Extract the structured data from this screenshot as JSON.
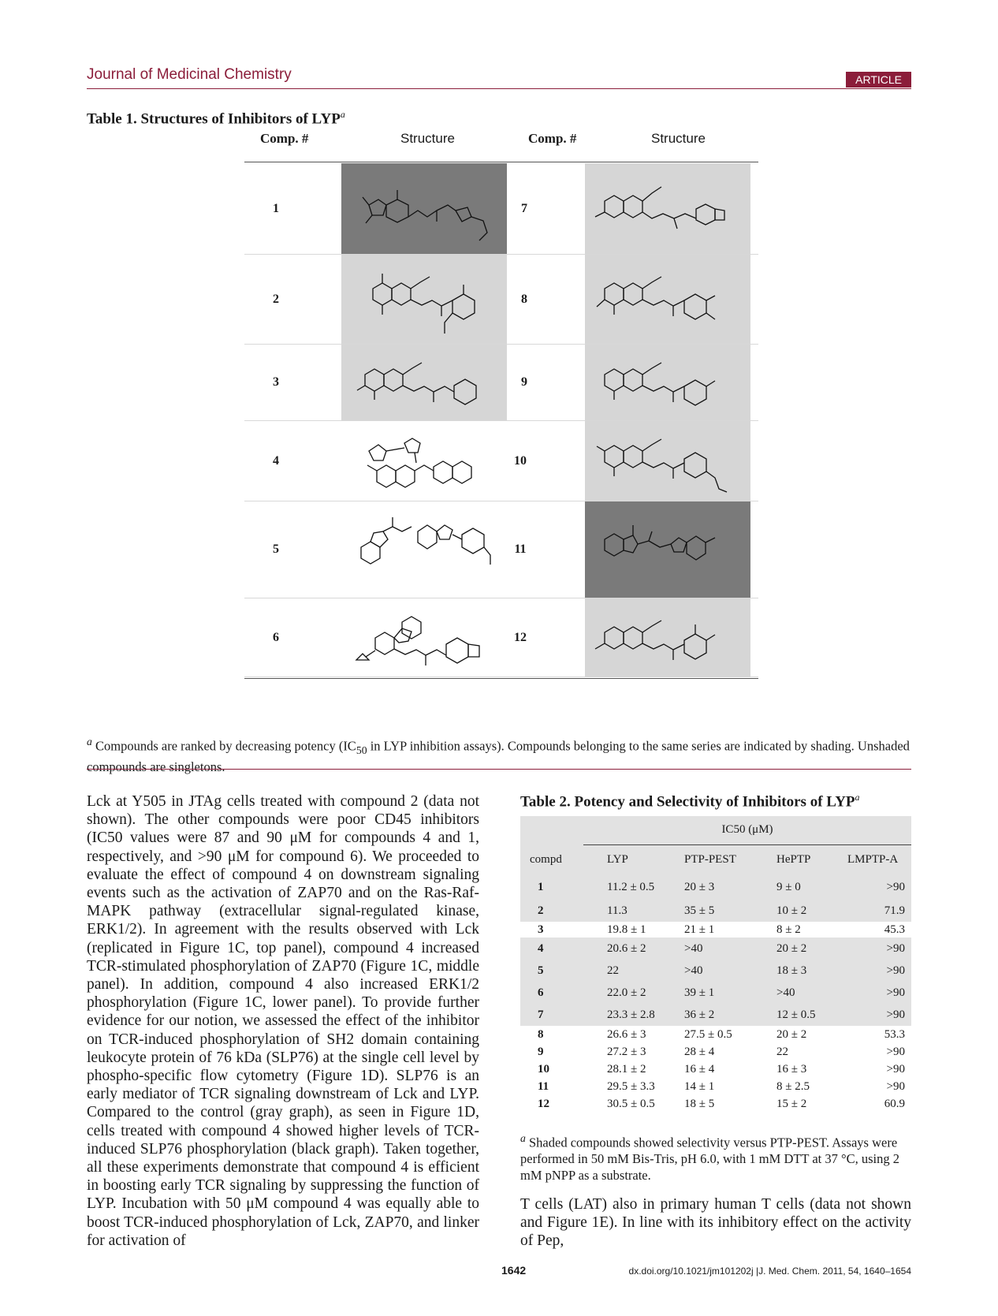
{
  "header": {
    "journal": "Journal of Medicinal Chemistry",
    "badge": "ARTICLE"
  },
  "table1": {
    "caption": "Table 1.  Structures of Inhibitors of LYP",
    "caption_sup": "a",
    "col_comp": "Comp. #",
    "col_structure": "Structure",
    "left": [
      {
        "num": "1",
        "shade": "dark"
      },
      {
        "num": "2",
        "shade": "light"
      },
      {
        "num": "3",
        "shade": "light"
      },
      {
        "num": "4",
        "shade": "none"
      },
      {
        "num": "5",
        "shade": "none"
      },
      {
        "num": "6",
        "shade": "none"
      }
    ],
    "right": [
      {
        "num": "7",
        "shade": "light"
      },
      {
        "num": "8",
        "shade": "light"
      },
      {
        "num": "9",
        "shade": "light"
      },
      {
        "num": "10",
        "shade": "light"
      },
      {
        "num": "11",
        "shade": "dark"
      },
      {
        "num": "12",
        "shade": "light"
      }
    ],
    "footnote_sup": "a",
    "footnote_1": " Compounds are ranked by decreasing potency (IC",
    "footnote_sub": "50",
    "footnote_2": " in LYP inhibition assays). Compounds belonging to the same series are indicated by shading. Unshaded compounds are singletons."
  },
  "body_left": "Lck at Y505 in JTAg cells treated with compound 2 (data not shown). The other compounds were poor CD45 inhibitors (IC50 values were 87 and 90 μM for compounds 4 and 1, respectively, and >90 μM for compound 6). We proceeded to evaluate the effect of compound 4 on downstream signaling events such as the activation of ZAP70 and on the Ras-Raf-MAPK pathway (extracellular signal-regulated kinase, ERK1/2). In agreement with the results observed with Lck (replicated in Figure 1C, top panel), compound 4 increased TCR-stimulated phosphorylation of ZAP70 (Figure 1C, middle panel). In addition, compound 4 also increased ERK1/2 phosphorylation (Figure 1C, lower panel). To provide further evidence for our notion, we assessed the effect of the inhibitor on TCR-induced phosphorylation of SH2 domain containing leukocyte protein of 76 kDa (SLP76) at the single cell level by phospho-specific flow cytometry (Figure 1D). SLP76 is an early mediator of TCR signaling downstream of Lck and LYP. Compared to the control (gray graph), as seen in Figure 1D, cells treated with compound 4 showed higher levels of TCR-induced SLP76 phosphorylation (black graph). Taken together, all these experiments demonstrate that compound 4 is efficient in boosting early TCR signaling by suppressing the function of LYP. Incubation with 50 μM compound 4 was equally able to boost TCR-induced phosphorylation of Lck, ZAP70, and linker for activation of",
  "table2": {
    "caption": "Table 2.  Potency and Selectivity of Inhibitors of LYP",
    "caption_sup": "a",
    "ic50_header": "IC50 (μM)",
    "columns": [
      "compd",
      "LYP",
      "PTP-PEST",
      "HePTP",
      "LMPTP-A"
    ],
    "rows": [
      [
        "1",
        "11.2 ± 0.5",
        "20 ± 3",
        "9 ± 0",
        ">90"
      ],
      [
        "2",
        "11.3",
        "35 ± 5",
        "10 ± 2",
        "71.9"
      ],
      [
        "3",
        "19.8 ± 1",
        "21 ± 1",
        "8 ± 2",
        "45.3"
      ],
      [
        "4",
        "20.6 ± 2",
        ">40",
        "20 ± 2",
        ">90"
      ],
      [
        "5",
        "22",
        ">40",
        "18 ± 3",
        ">90"
      ],
      [
        "6",
        "22.0 ± 2",
        "39 ± 1",
        ">40",
        ">90"
      ],
      [
        "7",
        "23.3 ± 2.8",
        "36 ± 2",
        "12 ± 0.5",
        ">90"
      ],
      [
        "8",
        "26.6 ± 3",
        "27.5 ± 0.5",
        "20 ± 2",
        "53.3"
      ],
      [
        "9",
        "27.2 ± 3",
        "28 ± 4",
        "22",
        ">90"
      ],
      [
        "10",
        "28.1 ± 2",
        "16 ± 4",
        "16 ± 3",
        ">90"
      ],
      [
        "11",
        "29.5 ± 3.3",
        "14 ± 1",
        "8 ± 2.5",
        ">90"
      ],
      [
        "12",
        "30.5 ± 0.5",
        "18 ± 5",
        "15 ± 2",
        "60.9"
      ]
    ],
    "shaded_rows": [
      0,
      1,
      3,
      4,
      5,
      6
    ],
    "footnote_sup": "a",
    "footnote": " Shaded compounds showed selectivity versus PTP-PEST. Assays were performed in 50 mM Bis-Tris, pH 6.0, with 1 mM DTT at 37 °C, using 2 mM pNPP as a substrate."
  },
  "body_right": "T cells (LAT) also in primary human T cells (data not shown and Figure 1E). In line with its inhibitory effect on the activity of Pep,",
  "footer": {
    "page": "1642",
    "doi": "dx.doi.org/10.1021/jm101202j |J. Med. Chem. 2011, 54, 1640–1654"
  }
}
